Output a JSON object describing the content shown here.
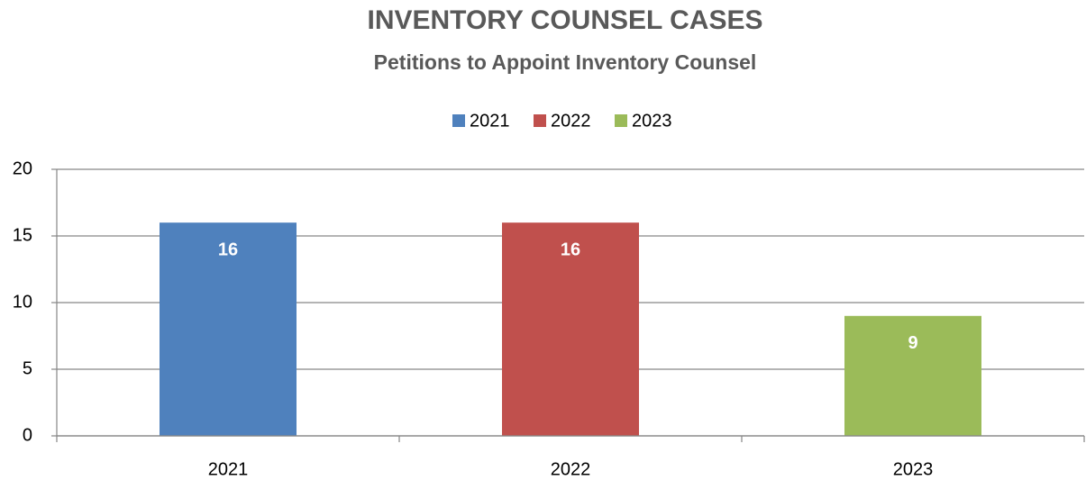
{
  "chart_data": {
    "type": "bar",
    "title": "INVENTORY COUNSEL CASES",
    "subtitle": "Petitions to Appoint Inventory Counsel",
    "categories": [
      "2021",
      "2022",
      "2023"
    ],
    "series": [
      {
        "name": "2021",
        "color": "#4f81bd",
        "values": [
          16,
          null,
          null
        ]
      },
      {
        "name": "2022",
        "color": "#c0504d",
        "values": [
          null,
          16,
          null
        ]
      },
      {
        "name": "2023",
        "color": "#9bbb59",
        "values": [
          null,
          null,
          9
        ]
      }
    ],
    "ylim": [
      0,
      20
    ],
    "yticks": [
      0,
      5,
      10,
      15,
      20
    ],
    "grid": true,
    "legend": "top"
  }
}
